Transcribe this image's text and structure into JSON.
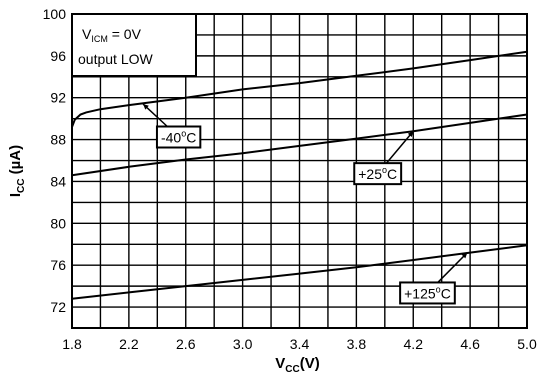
{
  "chart_data": {
    "type": "line",
    "xlabel": {
      "main": "V",
      "sub": "CC",
      "unit": "(V)"
    },
    "ylabel": {
      "main": "I",
      "sub": "CC",
      "unit": " (µA)"
    },
    "xlim": [
      1.8,
      5.0
    ],
    "ylim": [
      70,
      100
    ],
    "x_ticks": [
      "1.8",
      "2.2",
      "2.6",
      "3.0",
      "3.4",
      "3.8",
      "4.2",
      "4.6",
      "5.0"
    ],
    "y_ticks": [
      "72",
      "76",
      "80",
      "84",
      "88",
      "92",
      "96",
      "100"
    ],
    "grid": true,
    "series": [
      {
        "name": "-40°C",
        "x": [
          1.8,
          1.82,
          1.86,
          1.9,
          2.0,
          2.2,
          2.6,
          3.0,
          3.4,
          3.8,
          4.2,
          4.6,
          5.0
        ],
        "y": [
          89.2,
          89.9,
          90.4,
          90.6,
          90.9,
          91.3,
          92.0,
          92.8,
          93.4,
          94.1,
          94.8,
          95.6,
          96.4
        ]
      },
      {
        "name": "+25°C",
        "x": [
          1.8,
          2.2,
          2.6,
          3.0,
          3.4,
          3.8,
          4.2,
          4.6,
          5.0
        ],
        "y": [
          84.6,
          85.4,
          86.1,
          86.7,
          87.4,
          88.1,
          88.8,
          89.6,
          90.4
        ]
      },
      {
        "name": "+125°C",
        "x": [
          1.8,
          2.2,
          2.6,
          3.0,
          3.4,
          3.8,
          4.2,
          4.6,
          5.0
        ],
        "y": [
          72.8,
          73.4,
          74.0,
          74.6,
          75.2,
          75.8,
          76.5,
          77.2,
          77.9
        ]
      }
    ],
    "condition_box": {
      "line1_main": "V",
      "line1_sub": "ICM",
      "line1_rest": " = 0V",
      "line2": "output LOW"
    },
    "annotations": [
      {
        "series": 0,
        "label_main": "-40",
        "label_sup": "o",
        "label_rest": "C",
        "point": [
          2.3,
          91.4
        ],
        "label_at": [
          2.55,
          88.2
        ]
      },
      {
        "series": 1,
        "label_main": "+25",
        "label_sup": "o",
        "label_rest": "C",
        "point": [
          4.2,
          88.8
        ],
        "label_at": [
          3.95,
          84.7
        ]
      },
      {
        "series": 2,
        "label_main": "+125",
        "label_sup": "o",
        "label_rest": "C",
        "point": [
          4.58,
          77.2
        ],
        "label_at": [
          4.3,
          73.3
        ]
      }
    ]
  }
}
